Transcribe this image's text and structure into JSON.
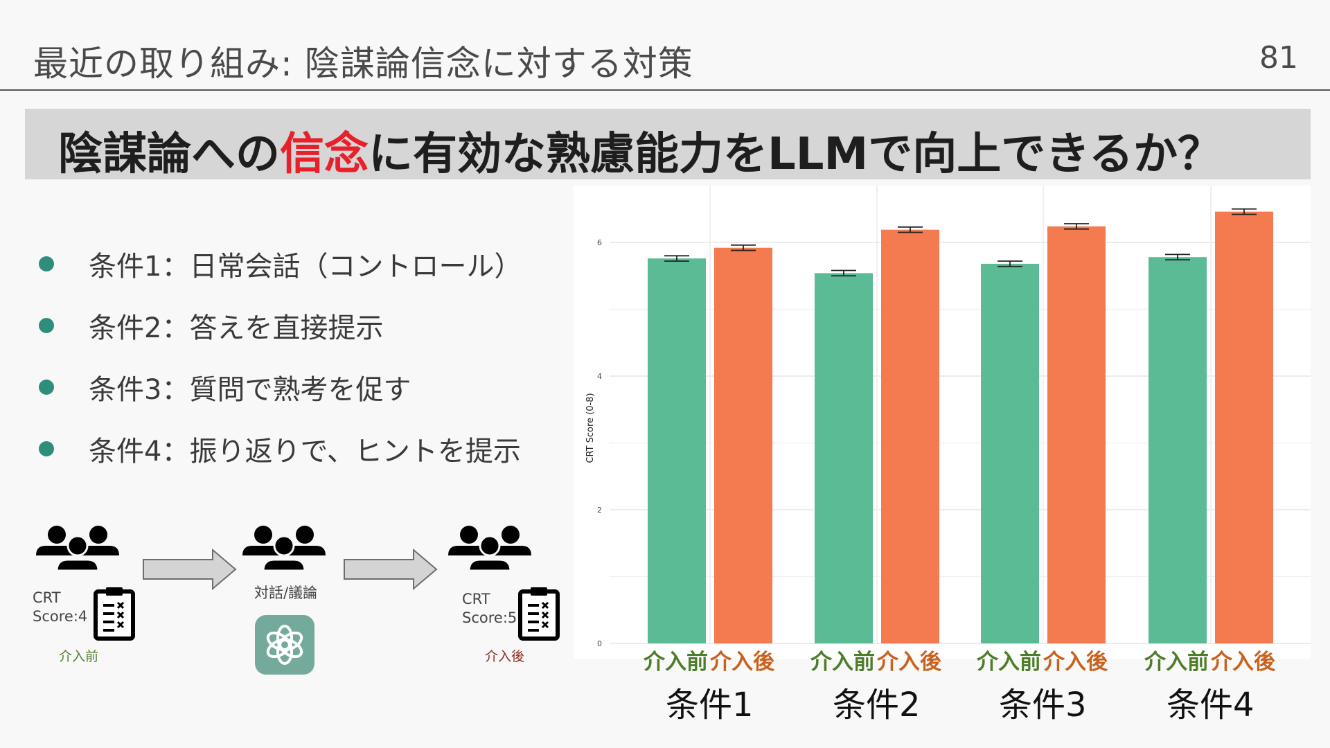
{
  "slide": {
    "title": "最近の取り組み: 陰謀論信念に対する対策",
    "page_number": "81"
  },
  "question": {
    "before": "陰謀論への",
    "highlight": "信念",
    "after": "に有効な熟慮能力をLLMで向上できるか？"
  },
  "colors": {
    "bullet": "#2f8d7b",
    "before": "#5bbb95",
    "after": "#f47a4f",
    "highlight": "#e8202a",
    "before_label": "#4e7d2a",
    "after_label": "#c8621e",
    "after_stage_label": "#8e2a1e"
  },
  "bullets": [
    "条件1：日常会話（コントロール）",
    "条件2：答えを直接提示",
    "条件3：質問で熟考を促す",
    "条件4：振り返りで、ヒントを提示"
  ],
  "flow": {
    "start": {
      "score_label": "CRT\nScore:4",
      "stage": "介入前",
      "icons": [
        "group-icon",
        "checklist-icon"
      ]
    },
    "middle": {
      "label": "対話/議論",
      "icons": [
        "group-icon",
        "chatgpt-logo-icon"
      ]
    },
    "end": {
      "score_label": "CRT\nScore:5",
      "stage": "介入後",
      "icons": [
        "group-icon",
        "checklist-icon"
      ]
    },
    "arrow_icon": "arrow-right-icon"
  },
  "chart_data": {
    "type": "bar",
    "ylabel": "CRT Score (0-8)",
    "ylim": [
      0,
      6.6
    ],
    "yticks": [
      0,
      2,
      4,
      6
    ],
    "grid": true,
    "categories": [
      "条件1",
      "条件2",
      "条件3",
      "条件4"
    ],
    "bar_labels": [
      "介入前",
      "介入後"
    ],
    "series": [
      {
        "name": "介入前",
        "values": [
          5.76,
          5.54,
          5.68,
          5.78
        ],
        "errors": [
          0.04,
          0.04,
          0.04,
          0.04
        ]
      },
      {
        "name": "介入後",
        "values": [
          5.92,
          6.19,
          6.24,
          6.46
        ],
        "errors": [
          0.04,
          0.04,
          0.04,
          0.04
        ]
      }
    ]
  }
}
